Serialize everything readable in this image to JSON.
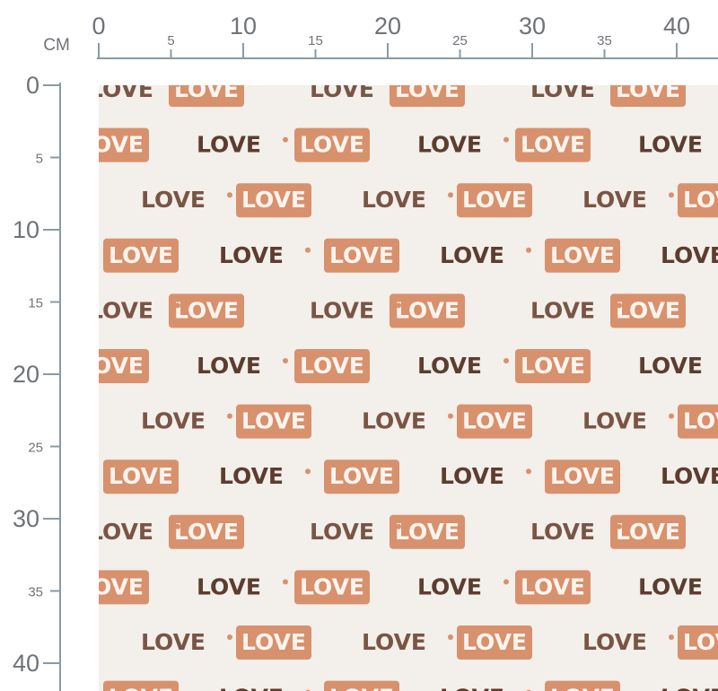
{
  "ruler": {
    "unit": "CM",
    "top": [
      0,
      5,
      10,
      15,
      20,
      25,
      30,
      35,
      40
    ],
    "left": [
      0,
      5,
      10,
      15,
      20,
      25,
      30,
      35,
      40
    ]
  },
  "pattern": {
    "word": "LOVE"
  }
}
